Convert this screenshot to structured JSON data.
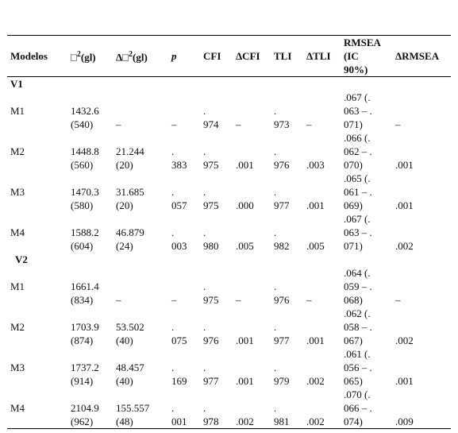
{
  "table": {
    "header": [
      "Modelos",
      {
        "base": "□",
        "sup": "2",
        "rest": "(gl)"
      },
      {
        "base": "Δ□",
        "sup": "2",
        "rest": "(gl)"
      },
      "p",
      "CFI",
      "ΔCFI",
      "TLI",
      "ΔTLI",
      "RMSEA\n(IC\n90%)",
      "ΔRMSEA"
    ],
    "groups": [
      {
        "label": "V1",
        "rows": [
          {
            "model": "M1",
            "cells": [
              "1432.6\n(540)",
              "–",
              "–",
              ".\n974",
              "–",
              ".\n973",
              "–",
              ".067 (.\n063 – .\n071)",
              "–"
            ]
          },
          {
            "model": "M2",
            "cells": [
              "1448.8\n(560)",
              "21.244\n(20)",
              ".\n383",
              ".\n975",
              ".001",
              ".\n976",
              ".003",
              ".066 (.\n062 – .\n070)",
              ".001"
            ]
          },
          {
            "model": "M3",
            "cells": [
              "1470.3\n(580)",
              "31.685\n(20)",
              ".\n057",
              ".\n975",
              ".000",
              ".\n977",
              ".001",
              ".065 (.\n061 – .\n069)",
              ".001"
            ]
          },
          {
            "model": "M4",
            "cells": [
              "1588.2\n(604)",
              "46.879\n(24)",
              ".\n003",
              ".\n980",
              ".005",
              ".\n982",
              ".005",
              ".067 (.\n063 – .\n071)",
              ".002"
            ]
          }
        ]
      },
      {
        "label": "V2",
        "rows": [
          {
            "model": "M1",
            "cells": [
              "1661.4\n(834)",
              "–",
              "–",
              ".\n975",
              "–",
              ".\n976",
              "–",
              ".064 (.\n059 – .\n068)",
              "–"
            ]
          },
          {
            "model": "M2",
            "cells": [
              "1703.9\n(874)",
              "53.502\n(40)",
              ".\n075",
              ".\n976",
              ".001",
              ".\n977",
              ".001",
              ".062 (.\n058 – .\n067)",
              ".002"
            ]
          },
          {
            "model": "M3",
            "cells": [
              "1737.2\n(914)",
              "48.457\n(40)",
              ".\n169",
              ".\n977",
              ".001",
              ".\n979",
              ".002",
              ".061 (.\n056 – .\n065)",
              ".001"
            ]
          },
          {
            "model": "M4",
            "cells": [
              "2104.9\n(962)",
              "155.557\n(48)",
              ".\n001",
              ".\n978",
              ".002",
              ".\n981",
              ".002",
              ".070 (.\n066 – .\n074)",
              ".009"
            ]
          }
        ]
      }
    ]
  }
}
